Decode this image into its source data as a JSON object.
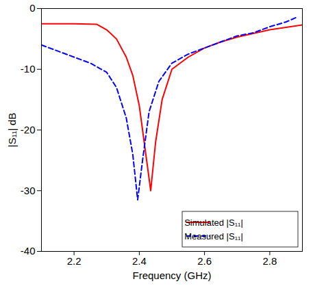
{
  "chart_data": {
    "type": "line",
    "x_label": "Frequency (GHz)",
    "y_label": "|S₁₁| dB",
    "xlim": [
      2.1,
      2.9
    ],
    "xticks": [
      2.2,
      2.4,
      2.6,
      2.8
    ],
    "ylim": [
      -40,
      0
    ],
    "yticks": [
      -40,
      -30,
      -20,
      -10,
      0
    ],
    "grid": false,
    "legend": "lower right",
    "series": [
      {
        "name": "Simulated |S₁₁|",
        "color": "#ff0000",
        "line_style": "solid",
        "x": [
          2.1,
          2.2,
          2.27,
          2.3,
          2.33,
          2.36,
          2.38,
          2.4,
          2.42,
          2.435,
          2.45,
          2.47,
          2.5,
          2.55,
          2.6,
          2.65,
          2.7,
          2.8,
          2.9
        ],
        "values": [
          -2.5,
          -2.5,
          -2.6,
          -3.5,
          -5,
          -8,
          -11,
          -16,
          -24,
          -30,
          -22,
          -15,
          -10,
          -8,
          -6.5,
          -5.5,
          -4.7,
          -3.5,
          -2.7
        ]
      },
      {
        "name": "Measured |S₁₁|",
        "color": "#0000ff",
        "line_style": "dashed",
        "x": [
          2.1,
          2.15,
          2.2,
          2.25,
          2.3,
          2.33,
          2.36,
          2.38,
          2.395,
          2.41,
          2.43,
          2.46,
          2.5,
          2.55,
          2.6,
          2.65,
          2.7,
          2.75,
          2.8,
          2.85,
          2.88
        ],
        "values": [
          -6,
          -7,
          -8,
          -9,
          -10.5,
          -13,
          -18,
          -24,
          -31.5,
          -25,
          -17,
          -12,
          -9,
          -7.5,
          -6.5,
          -5.5,
          -4.5,
          -4,
          -3,
          -2.2,
          -1.5
        ]
      }
    ]
  }
}
